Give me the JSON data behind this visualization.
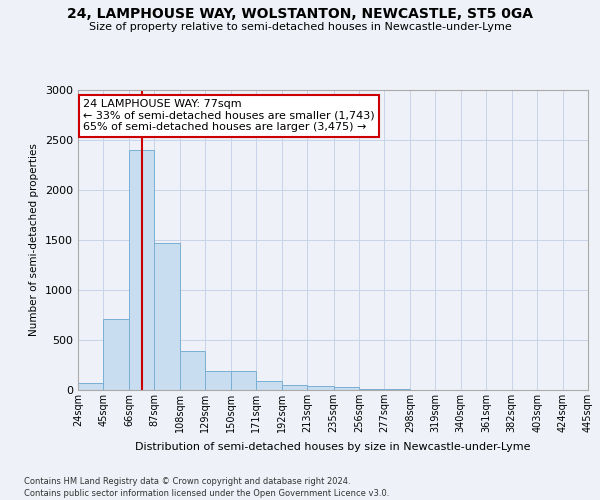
{
  "title": "24, LAMPHOUSE WAY, WOLSTANTON, NEWCASTLE, ST5 0GA",
  "subtitle": "Size of property relative to semi-detached houses in Newcastle-under-Lyme",
  "xlabel": "Distribution of semi-detached houses by size in Newcastle-under-Lyme",
  "ylabel": "Number of semi-detached properties",
  "footer_line1": "Contains HM Land Registry data © Crown copyright and database right 2024.",
  "footer_line2": "Contains public sector information licensed under the Open Government Licence v3.0.",
  "annotation_title": "24 LAMPHOUSE WAY: 77sqm",
  "annotation_line1": "← 33% of semi-detached houses are smaller (1,743)",
  "annotation_line2": "65% of semi-detached houses are larger (3,475) →",
  "property_size_sqm": 77,
  "red_line_x": 77,
  "bar_color": "#c8ddf0",
  "bar_edge_color": "#7aafd4",
  "red_line_color": "#cc0000",
  "annotation_box_color": "#ffffff",
  "annotation_box_edge": "#cc0000",
  "grid_color": "#c8d4e8",
  "background_color": "#eef2f8",
  "bin_edges": [
    24,
    45,
    66,
    87,
    108,
    129,
    150,
    171,
    192,
    213,
    235,
    256,
    277,
    298,
    319,
    340,
    361,
    382,
    403,
    424,
    445
  ],
  "bar_heights": [
    75,
    710,
    2400,
    1470,
    390,
    195,
    195,
    90,
    50,
    38,
    28,
    12,
    8,
    4,
    4,
    2,
    1,
    1,
    1,
    1
  ],
  "ylim": [
    0,
    3000
  ],
  "yticks": [
    0,
    500,
    1000,
    1500,
    2000,
    2500,
    3000
  ]
}
